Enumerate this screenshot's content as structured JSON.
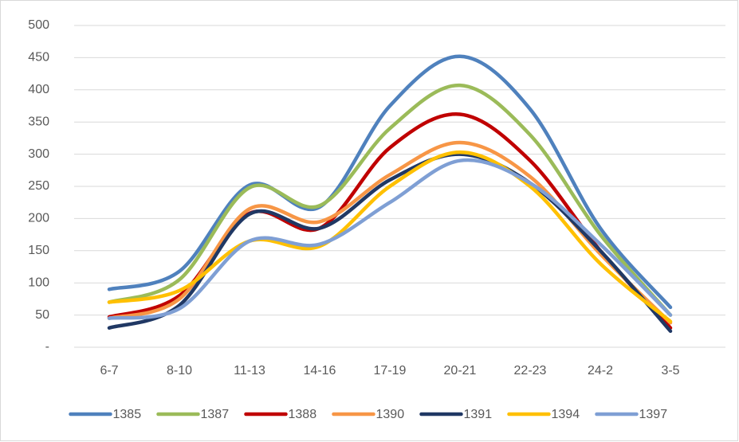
{
  "chart_data": {
    "type": "line",
    "smooth": true,
    "grid": true,
    "legend": "bottom",
    "categories": [
      "6-7",
      "8-10",
      "11-13",
      "14-16",
      "17-19",
      "20-21",
      "22-23",
      "24-2",
      "3-5"
    ],
    "ylim": [
      0,
      500
    ],
    "yticks": [
      {
        "value": 0,
        "label": "-"
      },
      50,
      100,
      150,
      200,
      250,
      300,
      350,
      400,
      450,
      500
    ],
    "series": [
      {
        "name": "1385",
        "color": "#4f81bd",
        "values": [
          90,
          118,
          252,
          218,
          375,
          452,
          370,
          185,
          62
        ]
      },
      {
        "name": "1387",
        "color": "#9bbb59",
        "values": [
          70,
          105,
          248,
          220,
          340,
          407,
          330,
          175,
          50
        ]
      },
      {
        "name": "1388",
        "color": "#c00000",
        "values": [
          47,
          80,
          208,
          185,
          310,
          362,
          290,
          150,
          30
        ]
      },
      {
        "name": "1390",
        "color": "#f79646",
        "values": [
          45,
          75,
          215,
          195,
          268,
          318,
          265,
          145,
          38
        ]
      },
      {
        "name": "1391",
        "color": "#203864",
        "values": [
          30,
          65,
          207,
          185,
          260,
          300,
          255,
          150,
          25
        ]
      },
      {
        "name": "1394",
        "color": "#ffc000",
        "values": [
          70,
          88,
          165,
          157,
          250,
          303,
          250,
          130,
          40
        ]
      },
      {
        "name": "1397",
        "color": "#7f9fd4",
        "values": [
          45,
          60,
          165,
          160,
          225,
          290,
          255,
          160,
          50
        ]
      }
    ]
  }
}
